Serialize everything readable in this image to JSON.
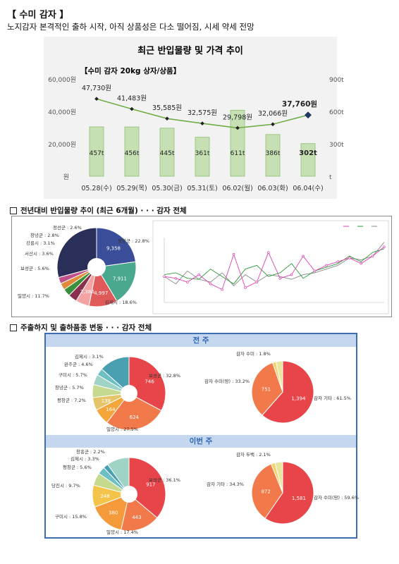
{
  "header": {
    "title": "【 수미 감자 】",
    "subtitle": "노지감자 본격적인 출하 시작, 아직 상품성은 다소 떨어짐, 시세 약세 전망"
  },
  "chart_main": {
    "title": "최근 반입물량 및 가격 추이",
    "inner_label": "【수미 감자 20kg 상자/상품】",
    "y_left_unit": "원",
    "y_left_ticks": [
      "60,000원",
      "40,000원",
      "20,000원"
    ],
    "y_right_unit": "t",
    "y_right_ticks": [
      "900t",
      "600t",
      "300t"
    ],
    "categories": [
      "05.28(수)",
      "05.29(목)",
      "05.30(금)",
      "05.31(토)",
      "06.02(월)",
      "06.03(화)",
      "06.04(수)"
    ],
    "bar_labels": [
      "457t",
      "456t",
      "445t",
      "361t",
      "611t",
      "386t",
      "302t"
    ],
    "price_labels": [
      "47,730원",
      "41,483원",
      "35,585원",
      "32,575원",
      "29,798원",
      "32,066원",
      "37,760원"
    ]
  },
  "chart_data": [
    {
      "type": "bar",
      "title": "최근 반입물량 및 가격 추이",
      "categories": [
        "05.28(수)",
        "05.29(목)",
        "05.30(금)",
        "05.31(토)",
        "06.02(월)",
        "06.03(화)",
        "06.04(수)"
      ],
      "series": [
        {
          "name": "반입물량",
          "values": [
            457,
            456,
            445,
            361,
            611,
            386,
            302
          ]
        },
        {
          "name": "가격",
          "values": [
            47730,
            41483,
            35585,
            32575,
            29798,
            32066,
            37760
          ]
        }
      ],
      "ylim_left": [
        0,
        60000
      ],
      "ylim_right": [
        0,
        900
      ]
    },
    {
      "type": "pie",
      "categories": [
        "평창군",
        "김제시",
        "밀양시",
        "보성군",
        "서산시",
        "강릉시",
        "창녕군",
        "정선군"
      ],
      "values": [
        22.8,
        18.6,
        11.7,
        5.6,
        3.6,
        3.1,
        2.8,
        2.6
      ],
      "inner_values": [
        "9,358",
        "7,911",
        "4,997",
        "2,386"
      ]
    },
    {
      "type": "pie",
      "categories": [
        "보성군",
        "밀양시",
        "평창군",
        "창녕군",
        "구미시",
        "완주군",
        "김제시"
      ],
      "values": [
        32.8,
        27.5,
        7.2,
        5.7,
        5.7,
        4.6,
        3.1
      ],
      "inner_values": [
        "746",
        "624",
        "164",
        "138"
      ]
    },
    {
      "type": "pie",
      "categories": [
        "감자 기타",
        "감자 수미(땅)",
        "감자 수미"
      ],
      "values": [
        61.5,
        33.2,
        1.8
      ],
      "inner_values": [
        "1,394",
        "751"
      ]
    },
    {
      "type": "pie",
      "categories": [
        "보성군",
        "밀양시",
        "구미시",
        "당진시",
        "평창군",
        "김제시",
        "창흥군"
      ],
      "values": [
        36.1,
        17.4,
        15.8,
        9.7,
        5.6,
        3.3,
        2.2
      ],
      "inner_values": [
        "917",
        "443",
        "380",
        "248"
      ]
    },
    {
      "type": "pie",
      "categories": [
        "감자 수미(땅)",
        "감자 기타",
        "감자 두백"
      ],
      "values": [
        59.6,
        34.3,
        2.1
      ],
      "inner_values": [
        "1,581",
        "872"
      ]
    }
  ],
  "section2": {
    "title": "전년대비 반입물량 추이 (최근 6개월) · · · 감자 전체"
  },
  "section3": {
    "title": "주출하지 및 출하품종 변동 · · · 감자 전체",
    "last_week": "전 주",
    "this_week": "이번 주"
  },
  "pie1_labels": [
    "정선군 : 2.6%",
    "창녕군 : 2.8%",
    "강릉시 : 3.1%",
    "서산시 : 3.6%",
    "보성군 : 5.6%",
    "밀양시 : 11.7%",
    "김제시 : 18.6%",
    "평창군 : 22.8%"
  ],
  "pie1_values": [
    "9,358",
    "7,911",
    "4,997",
    "2,386"
  ],
  "pie2_labels": [
    "김제시 : 3.1%",
    "완주군 : 4.6%",
    "구미시 : 5.7%",
    "창녕군 : 5.7%",
    "평창군 : 7.2%",
    "밀양시 : 27.5%",
    "보성군 : 32.8%"
  ],
  "pie2_values": [
    "746",
    "624",
    "164",
    "138"
  ],
  "pie3_labels": [
    "감자 수미 : 1.8%",
    "감자 수미(땅) : 33.2%",
    "감자 기타 : 61.5%"
  ],
  "pie3_values": [
    "1,394",
    "751"
  ],
  "pie4_labels": [
    "창흥군 : 2.2%",
    "김제시 : 3.3%",
    "평창군 : 5.6%",
    "당진시 : 9.7%",
    "구미시 : 15.8%",
    "밀양시 : 17.4%",
    "보성군 : 36.1%"
  ],
  "pie4_values": [
    "917",
    "443",
    "380",
    "248"
  ],
  "pie5_labels": [
    "감자 두백 : 2.1%",
    "감자 기타 : 34.3%",
    "감자 수미(땅) : 59.6%"
  ],
  "pie5_values": [
    "1,581",
    "872"
  ],
  "colors": {
    "bar": "#c6e0b4",
    "bar_border": "#8cbf73",
    "line": "#70ad47",
    "marker": "#1f3864",
    "blue": "#2b64b4"
  }
}
